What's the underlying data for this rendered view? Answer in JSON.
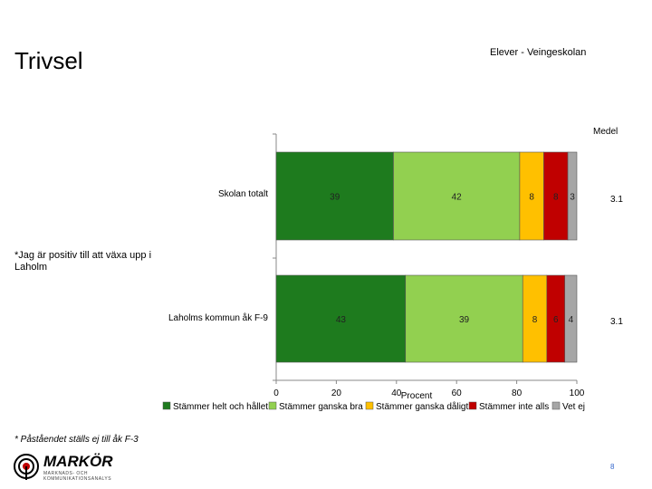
{
  "page": {
    "title": "Trivsel",
    "subtitle": "Elever - Veingeskolan",
    "medel_header": "Medel",
    "question": "*Jag är positiv till att växa upp i Laholm",
    "footnote": "* Påståendet ställs ej till åk F-3",
    "page_number": "8",
    "logo_text": "MARKÖR",
    "logo_tagline": "MARKNADS- OCH KOMMUNIKATIONSANALYS"
  },
  "chart_data": {
    "type": "bar",
    "orientation": "horizontal",
    "stacked": true,
    "xlabel": "Procent",
    "xlim": [
      0,
      100
    ],
    "xticks": [
      0,
      20,
      40,
      60,
      80,
      100
    ],
    "categories": [
      "Skolan totalt",
      "Laholms kommun åk F-9"
    ],
    "series": [
      {
        "name": "Stämmer helt och hållet",
        "color": "#1e7b1e",
        "values": [
          39,
          43
        ],
        "labels": [
          "39",
          "43"
        ]
      },
      {
        "name": "Stämmer ganska bra",
        "color": "#92d050",
        "values": [
          42,
          39
        ],
        "labels": [
          "42",
          "39"
        ]
      },
      {
        "name": "Stämmer ganska dåligt",
        "color": "#ffc000",
        "values": [
          8,
          8
        ],
        "labels": [
          "8",
          "8"
        ]
      },
      {
        "name": "Stämmer inte alls",
        "color": "#c00000",
        "values": [
          8,
          6
        ],
        "labels": [
          "8",
          "6"
        ]
      },
      {
        "name": "Vet ej",
        "color": "#a6a6a6",
        "values": [
          3,
          4
        ],
        "labels": [
          "3",
          "4"
        ]
      }
    ],
    "averages": [
      "3.1",
      "3.1"
    ],
    "legend_position": "bottom"
  }
}
